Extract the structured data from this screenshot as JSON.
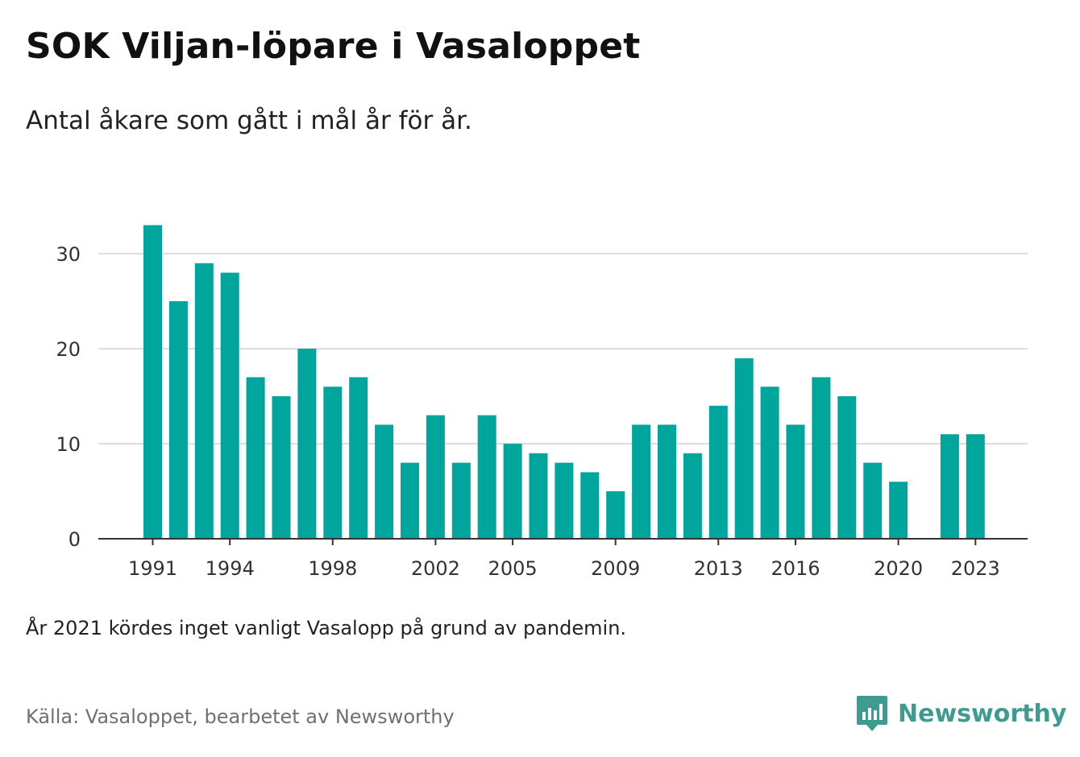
{
  "title": "SOK Viljan-löpare i Vasaloppet",
  "subtitle": "Antal åkare som gått i mål år för år.",
  "note": "År 2021 kördes inget vanligt Vasalopp på grund av pandemin.",
  "source": "Källa: Vasaloppet, bearbetet av Newsworthy",
  "logo": {
    "text": "Newsworthy",
    "icon": "bar-chart-speech-bubble-icon",
    "color": "#3e9b8f"
  },
  "chart_data": {
    "type": "bar",
    "color": "#00a59b",
    "categories": [
      "1991",
      "1992",
      "1993",
      "1994",
      "1995",
      "1996",
      "1997",
      "1998",
      "1999",
      "2000",
      "2001",
      "2002",
      "2003",
      "2004",
      "2005",
      "2006",
      "2007",
      "2008",
      "2009",
      "2010",
      "2011",
      "2012",
      "2013",
      "2014",
      "2015",
      "2016",
      "2017",
      "2018",
      "2019",
      "2020",
      "2021",
      "2022",
      "2023"
    ],
    "values": [
      33,
      25,
      29,
      28,
      17,
      15,
      20,
      16,
      17,
      12,
      8,
      13,
      8,
      13,
      10,
      9,
      8,
      7,
      5,
      12,
      12,
      9,
      14,
      19,
      16,
      12,
      17,
      15,
      8,
      6,
      null,
      11,
      11
    ],
    "x_tick_labels": [
      "1991",
      "1994",
      "1998",
      "2002",
      "2005",
      "2009",
      "2013",
      "2016",
      "2020",
      "2023"
    ],
    "y_ticks": [
      0,
      10,
      20,
      30
    ],
    "ylim": [
      0,
      33
    ],
    "xlabel": "",
    "ylabel": "",
    "grid": true
  }
}
